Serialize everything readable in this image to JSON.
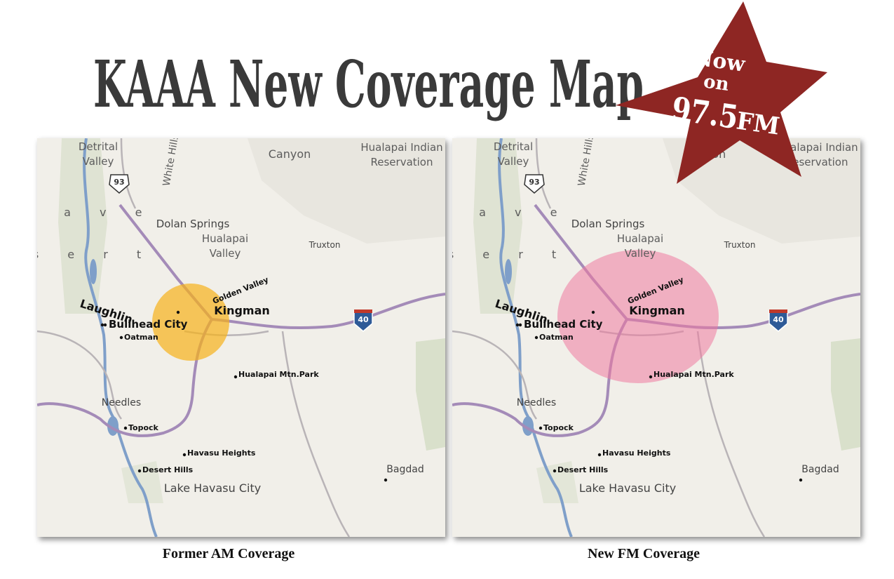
{
  "header": {
    "title": "KAAA  New Coverage Map"
  },
  "badge": {
    "line1": "Now",
    "line2": "on",
    "frequency": "97.5",
    "band": "FM"
  },
  "map_labels": [
    "Detrital",
    "Valley",
    "93",
    "White Hills",
    "Canyon",
    "Hualapai Indian",
    "Reservation",
    "j a v e",
    "s e r t",
    "Dolan Springs",
    "Hualapai",
    "Valley",
    "Truxton",
    "Golden Valley",
    "Kingman",
    "Laughlin",
    "Bullhead City",
    "Oatman",
    "40",
    "Hualapai Mtn.Park",
    "Needles",
    "Topock",
    "Havasu Heights",
    "Desert Hills",
    "Bagdad",
    "Lake Havasu City"
  ],
  "maps": [
    {
      "caption": "Former AM Coverage"
    },
    {
      "caption": "New FM Coverage"
    }
  ]
}
